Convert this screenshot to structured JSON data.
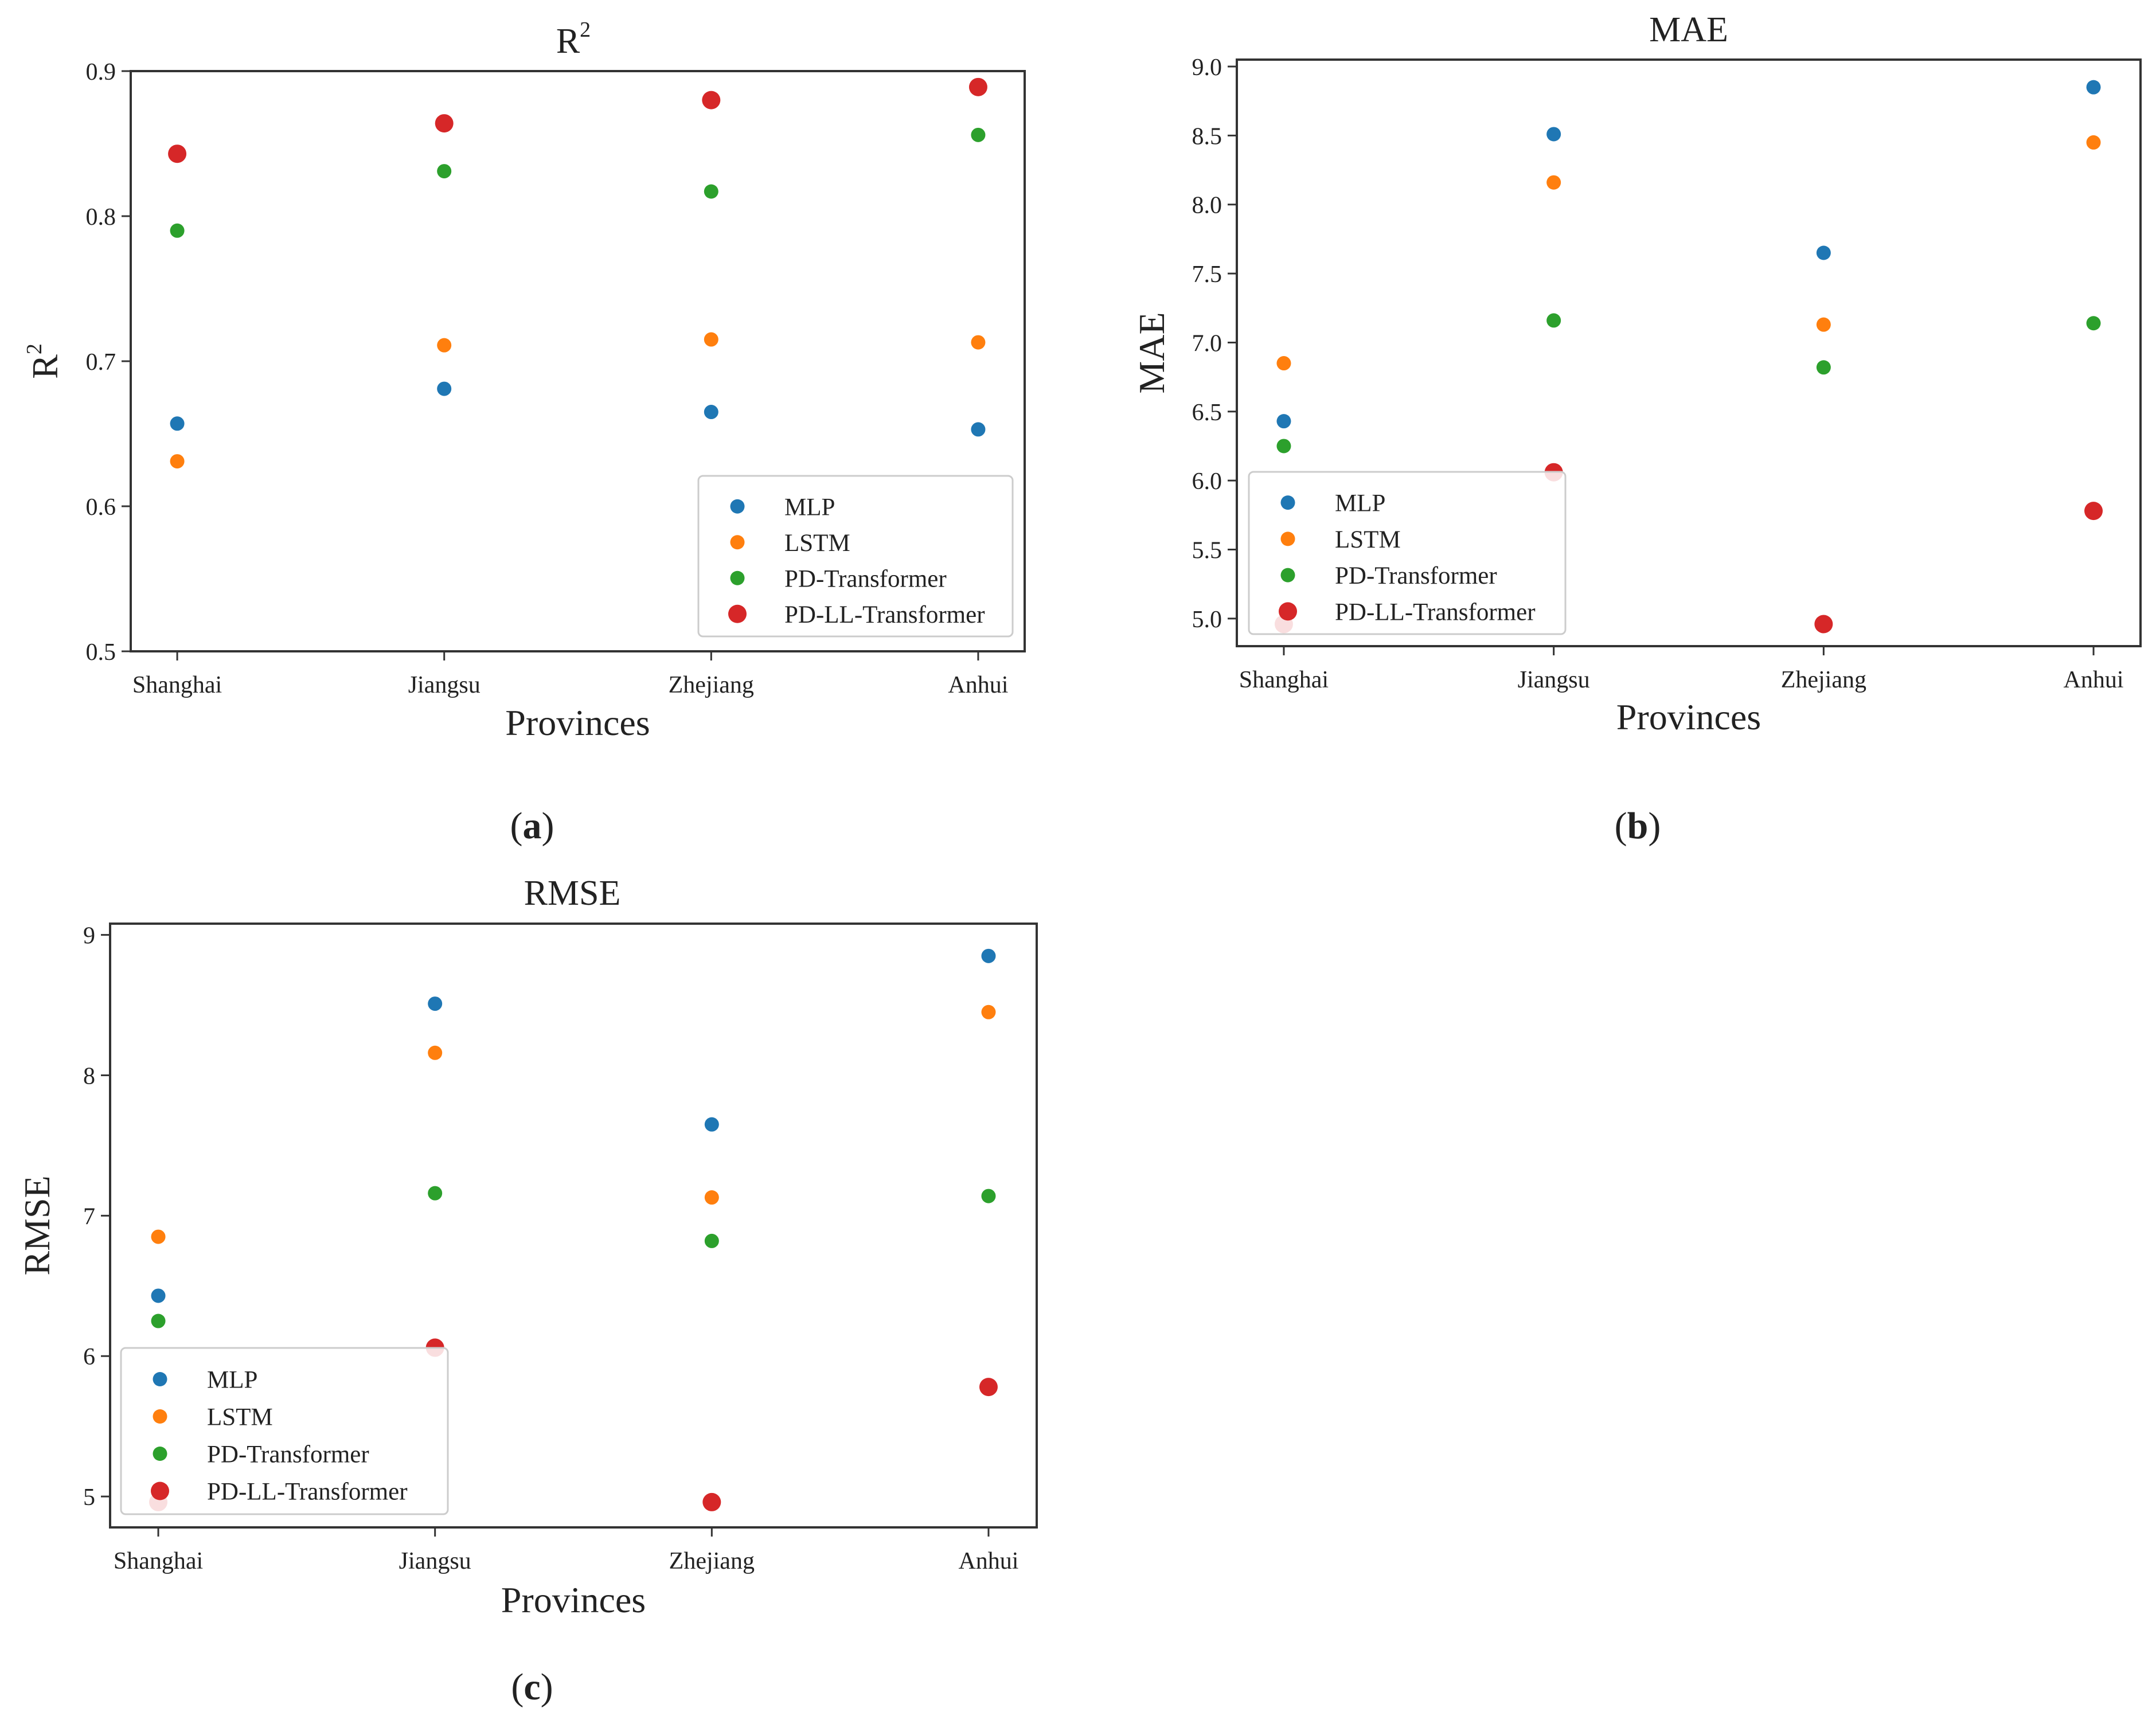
{
  "colors": {
    "MLP": "#1f77b4",
    "LSTM": "#ff7f0e",
    "PD-Transformer": "#2ca02c",
    "PD-LL-Transformer": "#d62728"
  },
  "chart_data": [
    {
      "type": "scatter",
      "panel": "a",
      "panel_label": "a",
      "title_base": "R",
      "title_sup": "2",
      "xlabel": "Provinces",
      "ylabel_base": "R",
      "ylabel_sup": "2",
      "categories": [
        "Shanghai",
        "Jiangsu",
        "Zhejiang",
        "Anhui"
      ],
      "ylim": [
        0.5,
        0.9
      ],
      "yticks": [
        0.5,
        0.6,
        0.7,
        0.8,
        0.9
      ],
      "ytick_labels": [
        "0.5",
        "0.6",
        "0.7",
        "0.8",
        "0.9"
      ],
      "legend_position": "lower-right",
      "series": [
        {
          "name": "MLP",
          "values": [
            0.657,
            0.681,
            0.665,
            0.653
          ]
        },
        {
          "name": "LSTM",
          "values": [
            0.631,
            0.711,
            0.715,
            0.713
          ]
        },
        {
          "name": "PD-Transformer",
          "values": [
            0.79,
            0.831,
            0.817,
            0.856
          ]
        },
        {
          "name": "PD-LL-Transformer",
          "values": [
            0.843,
            0.864,
            0.88,
            0.889
          ]
        }
      ]
    },
    {
      "type": "scatter",
      "panel": "b",
      "panel_label": "b",
      "title": "MAE",
      "xlabel": "Provinces",
      "ylabel": "MAE",
      "categories": [
        "Shanghai",
        "Jiangsu",
        "Zhejiang",
        "Anhui"
      ],
      "ylim": [
        4.8,
        9.05
      ],
      "yticks": [
        5.0,
        5.5,
        6.0,
        6.5,
        7.0,
        7.5,
        8.0,
        8.5,
        9.0
      ],
      "ytick_labels": [
        "5.0",
        "5.5",
        "6.0",
        "6.5",
        "7.0",
        "7.5",
        "8.0",
        "8.5",
        "9.0"
      ],
      "legend_position": "lower-left",
      "series": [
        {
          "name": "MLP",
          "values": [
            6.43,
            8.51,
            7.65,
            8.85
          ]
        },
        {
          "name": "LSTM",
          "values": [
            6.85,
            8.16,
            7.13,
            8.45
          ]
        },
        {
          "name": "PD-Transformer",
          "values": [
            6.25,
            7.16,
            6.82,
            7.14
          ]
        },
        {
          "name": "PD-LL-Transformer",
          "values": [
            4.96,
            6.06,
            4.96,
            5.78
          ]
        }
      ]
    },
    {
      "type": "scatter",
      "panel": "c",
      "panel_label": "c",
      "title": "RMSE",
      "xlabel": "Provinces",
      "ylabel": "RMSE",
      "categories": [
        "Shanghai",
        "Jiangsu",
        "Zhejiang",
        "Anhui"
      ],
      "ylim": [
        4.78,
        9.08
      ],
      "yticks": [
        5,
        6,
        7,
        8,
        9
      ],
      "ytick_labels": [
        "5",
        "6",
        "7",
        "8",
        "9"
      ],
      "legend_position": "lower-left",
      "series": [
        {
          "name": "MLP",
          "values": [
            6.43,
            8.51,
            7.65,
            8.85
          ]
        },
        {
          "name": "LSTM",
          "values": [
            6.85,
            8.16,
            7.13,
            8.45
          ]
        },
        {
          "name": "PD-Transformer",
          "values": [
            6.25,
            7.16,
            6.82,
            7.14
          ]
        },
        {
          "name": "PD-LL-Transformer",
          "values": [
            4.96,
            6.06,
            4.96,
            5.78
          ]
        }
      ]
    }
  ]
}
